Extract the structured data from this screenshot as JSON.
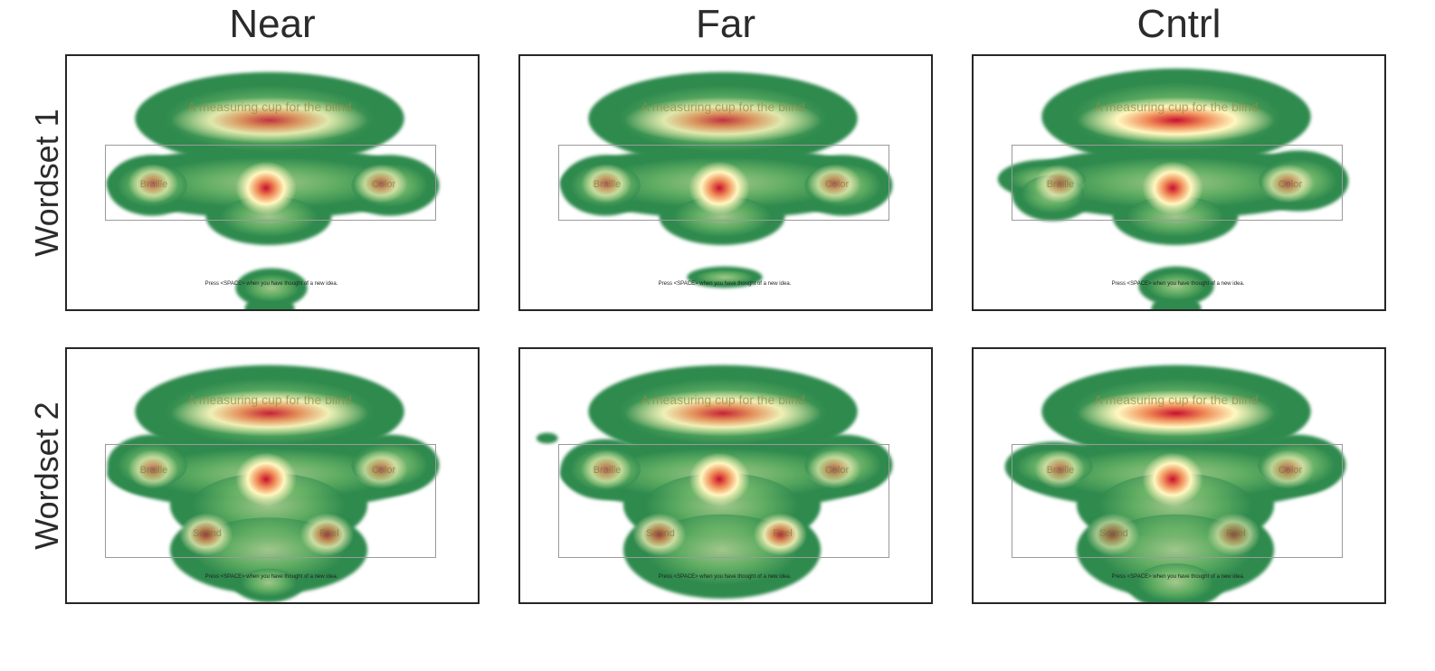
{
  "columns": [
    "Near",
    "Far",
    "Cntrl"
  ],
  "rows": [
    "Wordset 1",
    "Wordset 2"
  ],
  "stimulus": {
    "sentence": "A measuring cup for the blind.",
    "prompt": "Press <SPACE> when you have thought of a new idea.",
    "wordset1": [
      "Braille",
      "",
      "Color"
    ],
    "wordset2": [
      "Braille",
      "",
      "Color",
      "Sound",
      "Feel"
    ]
  },
  "colors": {
    "hot": "#c8102e",
    "warm": "#f08c58",
    "mid": "#fff7bf",
    "cool": "#89c974",
    "outer": "#2f8a4e"
  },
  "chart_data": {
    "type": "heatmap",
    "description_units": "fixation density (relative, 0-1)",
    "panels": [
      {
        "row": "Wordset 1",
        "column": "Near",
        "peaks": {
          "sentence": 0.55,
          "center_word": 1.0,
          "left_word": 0.35,
          "right_word": 0.35,
          "below_screen": true
        }
      },
      {
        "row": "Wordset 1",
        "column": "Far",
        "peaks": {
          "sentence": 0.55,
          "center_word": 1.0,
          "left_word": 0.35,
          "right_word": 0.35,
          "below_screen": false
        }
      },
      {
        "row": "Wordset 1",
        "column": "Cntrl",
        "peaks": {
          "sentence": 0.85,
          "center_word": 1.0,
          "left_word": 0.3,
          "right_word": 0.35,
          "below_screen": true
        }
      },
      {
        "row": "Wordset 2",
        "column": "Near",
        "peaks": {
          "sentence": 0.65,
          "center_word": 1.0,
          "left_word": 0.3,
          "right_word": 0.3,
          "lower_left": 0.45,
          "lower_right": 0.45,
          "below_screen": true
        }
      },
      {
        "row": "Wordset 2",
        "column": "Far",
        "peaks": {
          "sentence": 0.65,
          "center_word": 1.0,
          "left_word": 0.3,
          "right_word": 0.3,
          "lower_left": 0.45,
          "lower_right": 0.6,
          "below_screen": false
        }
      },
      {
        "row": "Wordset 2",
        "column": "Cntrl",
        "peaks": {
          "sentence": 0.8,
          "center_word": 1.0,
          "left_word": 0.3,
          "right_word": 0.3,
          "lower_left": 0.3,
          "lower_right": 0.3,
          "below_screen": true
        }
      }
    ]
  }
}
